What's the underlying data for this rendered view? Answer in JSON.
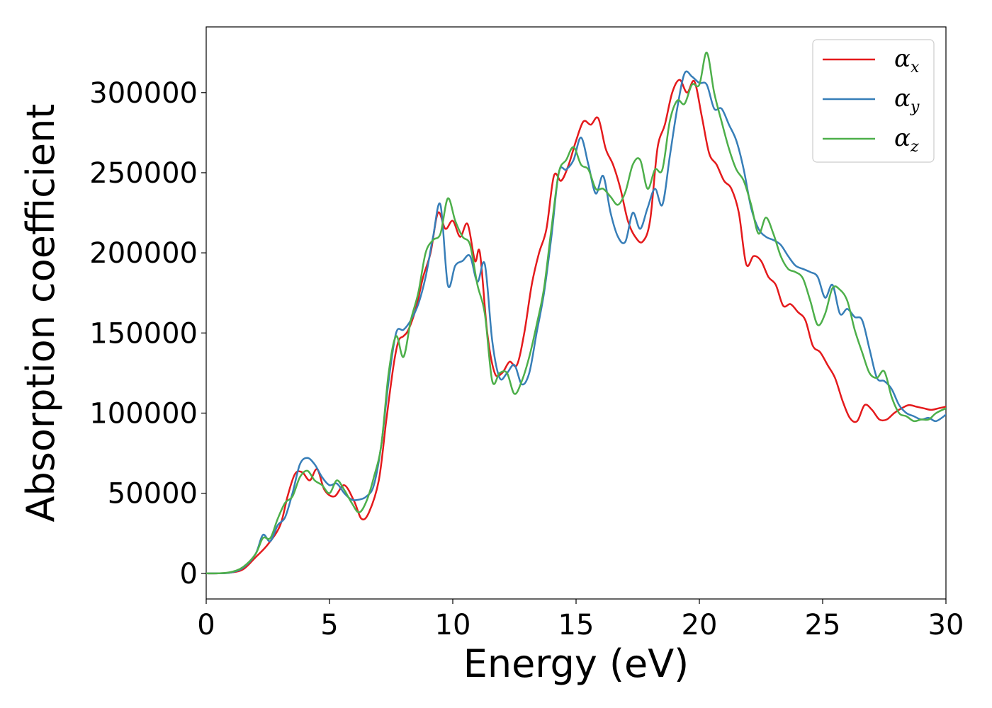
{
  "chart_data": {
    "type": "line",
    "title": "",
    "xlabel": "Energy (eV)",
    "ylabel": "Absorption coefficient",
    "xlim": [
      0,
      30
    ],
    "ylim": [
      -16000,
      341000
    ],
    "xticks": [
      0,
      5,
      10,
      15,
      20,
      25,
      30
    ],
    "yticks": [
      0,
      50000,
      100000,
      150000,
      200000,
      250000,
      300000
    ],
    "grid": false,
    "legend_position": "top-right",
    "series": [
      {
        "name": "αx",
        "symbol": "α",
        "subscript": "x",
        "color": "#e41a1c",
        "x": [
          0,
          0.5,
          1,
          1.5,
          2,
          2.5,
          3,
          3.3,
          3.6,
          3.9,
          4.2,
          4.5,
          4.8,
          5.2,
          5.6,
          6,
          6.3,
          6.6,
          7,
          7.3,
          7.6,
          7.8,
          8,
          8.2,
          8.5,
          8.8,
          9.1,
          9.4,
          9.7,
          10,
          10.3,
          10.6,
          10.9,
          11.1,
          11.4,
          11.7,
          12,
          12.3,
          12.6,
          12.9,
          13.2,
          13.5,
          13.8,
          14.1,
          14.4,
          14.7,
          15,
          15.3,
          15.6,
          15.9,
          16.2,
          16.5,
          16.8,
          17.1,
          17.4,
          17.7,
          18,
          18.3,
          18.6,
          18.9,
          19.2,
          19.5,
          19.8,
          20.1,
          20.4,
          20.7,
          21,
          21.3,
          21.6,
          21.9,
          22.2,
          22.5,
          22.8,
          23.1,
          23.4,
          23.7,
          24,
          24.3,
          24.6,
          24.9,
          25.2,
          25.5,
          25.8,
          26.1,
          26.4,
          26.7,
          27,
          27.3,
          27.6,
          27.9,
          28.2,
          28.5,
          28.8,
          29.1,
          29.4,
          29.7,
          30
        ],
        "y": [
          0,
          0,
          500,
          2500,
          10000,
          18000,
          30000,
          48000,
          62000,
          63000,
          58000,
          65000,
          52000,
          48000,
          55000,
          45000,
          34000,
          38000,
          58000,
          95000,
          130000,
          145000,
          148000,
          152000,
          165000,
          185000,
          200000,
          225000,
          215000,
          220000,
          210000,
          218000,
          195000,
          200000,
          150000,
          125000,
          125000,
          132000,
          130000,
          150000,
          180000,
          200000,
          215000,
          248000,
          245000,
          255000,
          270000,
          282000,
          280000,
          284000,
          265000,
          255000,
          240000,
          220000,
          210000,
          207000,
          220000,
          265000,
          280000,
          300000,
          308000,
          300000,
          307000,
          285000,
          262000,
          255000,
          245000,
          240000,
          225000,
          193000,
          198000,
          195000,
          185000,
          180000,
          167000,
          168000,
          163000,
          158000,
          142000,
          138000,
          130000,
          122000,
          108000,
          97000,
          95000,
          105000,
          102000,
          96000,
          96000,
          100000,
          103000,
          105000,
          104000,
          103000,
          102000,
          103000,
          104000
        ]
      },
      {
        "name": "αy",
        "symbol": "α",
        "subscript": "y",
        "color": "#377eb8",
        "x": [
          0,
          0.5,
          1,
          1.5,
          2,
          2.3,
          2.6,
          2.9,
          3.2,
          3.5,
          3.8,
          4.1,
          4.4,
          4.7,
          5,
          5.3,
          5.6,
          5.9,
          6.2,
          6.5,
          6.8,
          7.1,
          7.4,
          7.7,
          8,
          8.3,
          8.6,
          8.9,
          9.2,
          9.5,
          9.8,
          10.1,
          10.4,
          10.7,
          11,
          11.3,
          11.6,
          11.9,
          12.2,
          12.5,
          12.8,
          13.1,
          13.4,
          13.7,
          14,
          14.3,
          14.6,
          14.9,
          15.2,
          15.5,
          15.8,
          16.1,
          16.4,
          16.7,
          17,
          17.3,
          17.6,
          17.9,
          18.2,
          18.5,
          18.8,
          19.1,
          19.4,
          19.7,
          20,
          20.3,
          20.6,
          20.9,
          21.2,
          21.5,
          21.8,
          22.1,
          22.4,
          22.7,
          23,
          23.3,
          23.6,
          23.9,
          24.2,
          24.5,
          24.8,
          25.1,
          25.4,
          25.7,
          26,
          26.3,
          26.6,
          26.9,
          27.2,
          27.5,
          27.8,
          28.1,
          28.4,
          28.7,
          29,
          29.3,
          29.6,
          30
        ],
        "y": [
          0,
          0,
          500,
          3500,
          12000,
          24000,
          20000,
          30000,
          35000,
          50000,
          68000,
          72000,
          68000,
          60000,
          55000,
          56000,
          50000,
          46000,
          46000,
          48000,
          55000,
          80000,
          120000,
          150000,
          152000,
          158000,
          168000,
          185000,
          210000,
          230000,
          180000,
          192000,
          195000,
          198000,
          182000,
          193000,
          145000,
          122000,
          125000,
          130000,
          118000,
          125000,
          150000,
          175000,
          210000,
          250000,
          252000,
          258000,
          272000,
          255000,
          237000,
          248000,
          225000,
          210000,
          207000,
          225000,
          215000,
          228000,
          240000,
          230000,
          260000,
          290000,
          312000,
          310000,
          306000,
          305000,
          290000,
          290000,
          280000,
          270000,
          252000,
          228000,
          215000,
          210000,
          208000,
          205000,
          198000,
          192000,
          190000,
          188000,
          185000,
          172000,
          180000,
          162000,
          165000,
          160000,
          158000,
          140000,
          122000,
          120000,
          115000,
          105000,
          100000,
          98000,
          96000,
          97000,
          95000,
          99000
        ]
      },
      {
        "name": "αz",
        "symbol": "α",
        "subscript": "z",
        "color": "#4daf4a",
        "x": [
          0,
          0.5,
          1,
          1.5,
          2,
          2.3,
          2.6,
          2.9,
          3.2,
          3.5,
          3.8,
          4.1,
          4.4,
          4.7,
          5,
          5.3,
          5.6,
          5.9,
          6.2,
          6.5,
          6.8,
          7.1,
          7.4,
          7.7,
          8,
          8.3,
          8.6,
          8.9,
          9.2,
          9.5,
          9.8,
          10.1,
          10.4,
          10.7,
          11,
          11.3,
          11.6,
          11.9,
          12.2,
          12.5,
          12.8,
          13.1,
          13.4,
          13.7,
          14,
          14.3,
          14.6,
          14.9,
          15.2,
          15.5,
          15.8,
          16.1,
          16.4,
          16.7,
          17,
          17.3,
          17.6,
          17.9,
          18.2,
          18.5,
          18.8,
          19.1,
          19.4,
          19.7,
          20,
          20.3,
          20.6,
          20.9,
          21.2,
          21.5,
          21.8,
          22.1,
          22.4,
          22.7,
          23,
          23.3,
          23.6,
          23.9,
          24.2,
          24.5,
          24.8,
          25.1,
          25.4,
          25.7,
          26,
          26.3,
          26.6,
          26.9,
          27.2,
          27.5,
          27.8,
          28.1,
          28.4,
          28.7,
          29,
          29.3,
          29.6,
          30
        ],
        "y": [
          0,
          0,
          800,
          4000,
          12000,
          22000,
          22000,
          34000,
          44000,
          48000,
          60000,
          64000,
          58000,
          55000,
          50000,
          58000,
          52000,
          44000,
          38000,
          45000,
          60000,
          80000,
          125000,
          148000,
          135000,
          158000,
          175000,
          200000,
          208000,
          212000,
          234000,
          220000,
          210000,
          205000,
          180000,
          162000,
          120000,
          125000,
          125000,
          112000,
          120000,
          135000,
          155000,
          178000,
          215000,
          250000,
          258000,
          266000,
          255000,
          252000,
          240000,
          240000,
          235000,
          230000,
          238000,
          255000,
          258000,
          240000,
          252000,
          252000,
          282000,
          295000,
          293000,
          305000,
          305000,
          325000,
          300000,
          282000,
          265000,
          252000,
          245000,
          230000,
          212000,
          222000,
          212000,
          198000,
          190000,
          188000,
          184000,
          170000,
          155000,
          162000,
          178000,
          177000,
          170000,
          152000,
          138000,
          125000,
          122000,
          126000,
          110000,
          100000,
          98000,
          95000,
          96000,
          96000,
          100000,
          103000
        ]
      }
    ]
  }
}
